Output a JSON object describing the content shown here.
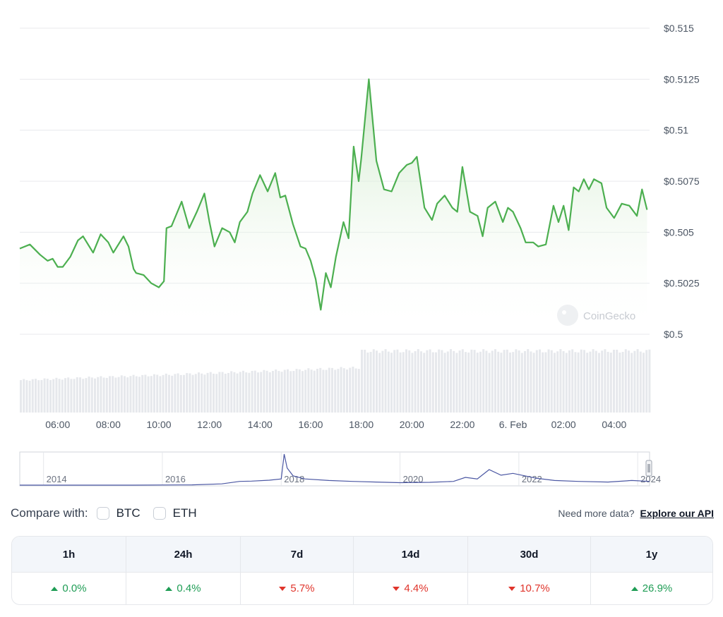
{
  "chart_data": {
    "type": "line",
    "yaxis": {
      "tick_labels": [
        "$0.5",
        "$0.5025",
        "$0.505",
        "$0.5075",
        "$0.51",
        "$0.5125",
        "$0.515"
      ],
      "ylim": [
        0.5,
        0.515
      ],
      "position": "right"
    },
    "xaxis": {
      "tick_labels": [
        "06:00",
        "08:00",
        "10:00",
        "12:00",
        "14:00",
        "16:00",
        "18:00",
        "20:00",
        "22:00",
        "6. Feb",
        "02:00",
        "04:00"
      ],
      "xlim_hours": [
        4.5,
        29.4
      ]
    },
    "grid": true,
    "watermark": "CoinGecko",
    "series": [
      {
        "x": [
          4.5,
          4.9,
          5.3,
          5.6,
          5.8,
          6.0,
          6.2,
          6.5,
          6.8,
          7.0,
          7.4,
          7.7,
          8.0,
          8.2,
          8.6,
          8.8,
          9.0,
          9.1,
          9.4,
          9.7,
          10.0,
          10.2,
          10.3,
          10.5,
          10.6,
          10.9,
          11.2,
          11.5,
          11.8,
          12.0,
          12.2,
          12.5,
          12.8,
          13.0,
          13.2,
          13.5,
          13.7,
          14.0,
          14.3,
          14.6,
          14.8,
          15.0,
          15.3,
          15.6,
          15.8,
          16.0,
          16.2,
          16.4,
          16.6,
          16.8,
          17.0,
          17.3,
          17.5,
          17.7,
          17.9,
          18.0,
          18.3,
          18.6,
          18.9,
          19.2,
          19.5,
          19.8,
          20.0,
          20.2,
          20.5,
          20.8,
          21.0,
          21.3,
          21.6,
          21.8,
          22.0,
          22.3,
          22.6,
          22.8,
          23.0,
          23.3,
          23.6,
          23.8,
          24.0,
          24.3,
          24.5,
          24.8,
          25.0,
          25.3,
          25.6,
          25.8,
          26.0,
          26.2,
          26.4,
          26.6,
          26.8,
          27.0,
          27.2,
          27.5,
          27.7,
          28.0,
          28.3,
          28.6,
          28.9,
          29.1,
          29.3
        ],
        "y": [
          0.5042,
          0.5044,
          0.5039,
          0.5036,
          0.5037,
          0.5033,
          0.5033,
          0.5038,
          0.5046,
          0.5048,
          0.504,
          0.5049,
          0.5045,
          0.504,
          0.5048,
          0.5043,
          0.5032,
          0.503,
          0.5029,
          0.5025,
          0.5023,
          0.5026,
          0.5052,
          0.5053,
          0.5056,
          0.5065,
          0.5052,
          0.506,
          0.5069,
          0.5055,
          0.5043,
          0.5052,
          0.505,
          0.5045,
          0.5055,
          0.506,
          0.5069,
          0.5078,
          0.507,
          0.5079,
          0.5067,
          0.5068,
          0.5054,
          0.5043,
          0.5042,
          0.5036,
          0.5027,
          0.5012,
          0.503,
          0.5023,
          0.5038,
          0.5055,
          0.5047,
          0.5092,
          0.5075,
          0.5086,
          0.5125,
          0.5085,
          0.5071,
          0.507,
          0.5079,
          0.5083,
          0.5084,
          0.5087,
          0.5062,
          0.5056,
          0.5064,
          0.5068,
          0.5062,
          0.506,
          0.5082,
          0.506,
          0.5058,
          0.5048,
          0.5062,
          0.5065,
          0.5055,
          0.5062,
          0.506,
          0.5052,
          0.5045,
          0.5045,
          0.5043,
          0.5044,
          0.5063,
          0.5055,
          0.5063,
          0.5051,
          0.5072,
          0.507,
          0.5076,
          0.5071,
          0.5076,
          0.5074,
          0.5062,
          0.5057,
          0.5064,
          0.5063,
          0.5058,
          0.5071,
          0.5061
        ]
      }
    ],
    "volume": {
      "x_start": 4.5,
      "x_end": 29.4,
      "relative_start": 0.52,
      "relative_end": 0.72,
      "jump_at": 17.9,
      "relative_after_jump": 0.76
    },
    "navigator": {
      "tick_labels": [
        "2014",
        "2016",
        "2018",
        "2020",
        "2022",
        "2024"
      ],
      "xlim_years": [
        2013.6,
        2024.2
      ],
      "x": [
        2013.6,
        2014.5,
        2015.5,
        2016.5,
        2017.0,
        2017.3,
        2017.5,
        2017.8,
        2018.0,
        2018.05,
        2018.1,
        2018.2,
        2018.4,
        2018.8,
        2019.2,
        2019.6,
        2020.0,
        2020.5,
        2020.9,
        2021.1,
        2021.3,
        2021.5,
        2021.7,
        2021.9,
        2022.1,
        2022.3,
        2022.6,
        2023.0,
        2023.5,
        2023.9,
        2024.2
      ],
      "y": [
        0.0,
        0.0,
        0.0,
        0.01,
        0.04,
        0.12,
        0.13,
        0.16,
        0.2,
        1.0,
        0.55,
        0.3,
        0.2,
        0.15,
        0.12,
        0.1,
        0.08,
        0.09,
        0.12,
        0.25,
        0.2,
        0.5,
        0.32,
        0.38,
        0.3,
        0.22,
        0.15,
        0.12,
        0.1,
        0.15,
        0.12
      ]
    }
  },
  "compare": {
    "label": "Compare with:",
    "options": [
      {
        "label": "BTC"
      },
      {
        "label": "ETH"
      }
    ],
    "api_text": "Need more data?",
    "api_link": "Explore our API"
  },
  "performance": [
    {
      "period": "1h",
      "value": "0.0%",
      "direction": "up"
    },
    {
      "period": "24h",
      "value": "0.4%",
      "direction": "up"
    },
    {
      "period": "7d",
      "value": "5.7%",
      "direction": "down"
    },
    {
      "period": "14d",
      "value": "4.4%",
      "direction": "down"
    },
    {
      "period": "30d",
      "value": "10.7%",
      "direction": "down"
    },
    {
      "period": "1y",
      "value": "26.9%",
      "direction": "up"
    }
  ],
  "colors": {
    "line": "#4caf50",
    "fill_top": "#d9efd6",
    "grid": "#e8eaed",
    "volume": "#e6e8ec",
    "navigator_line": "#4b57a3",
    "up": "#1f9d55",
    "down": "#e0342b"
  }
}
